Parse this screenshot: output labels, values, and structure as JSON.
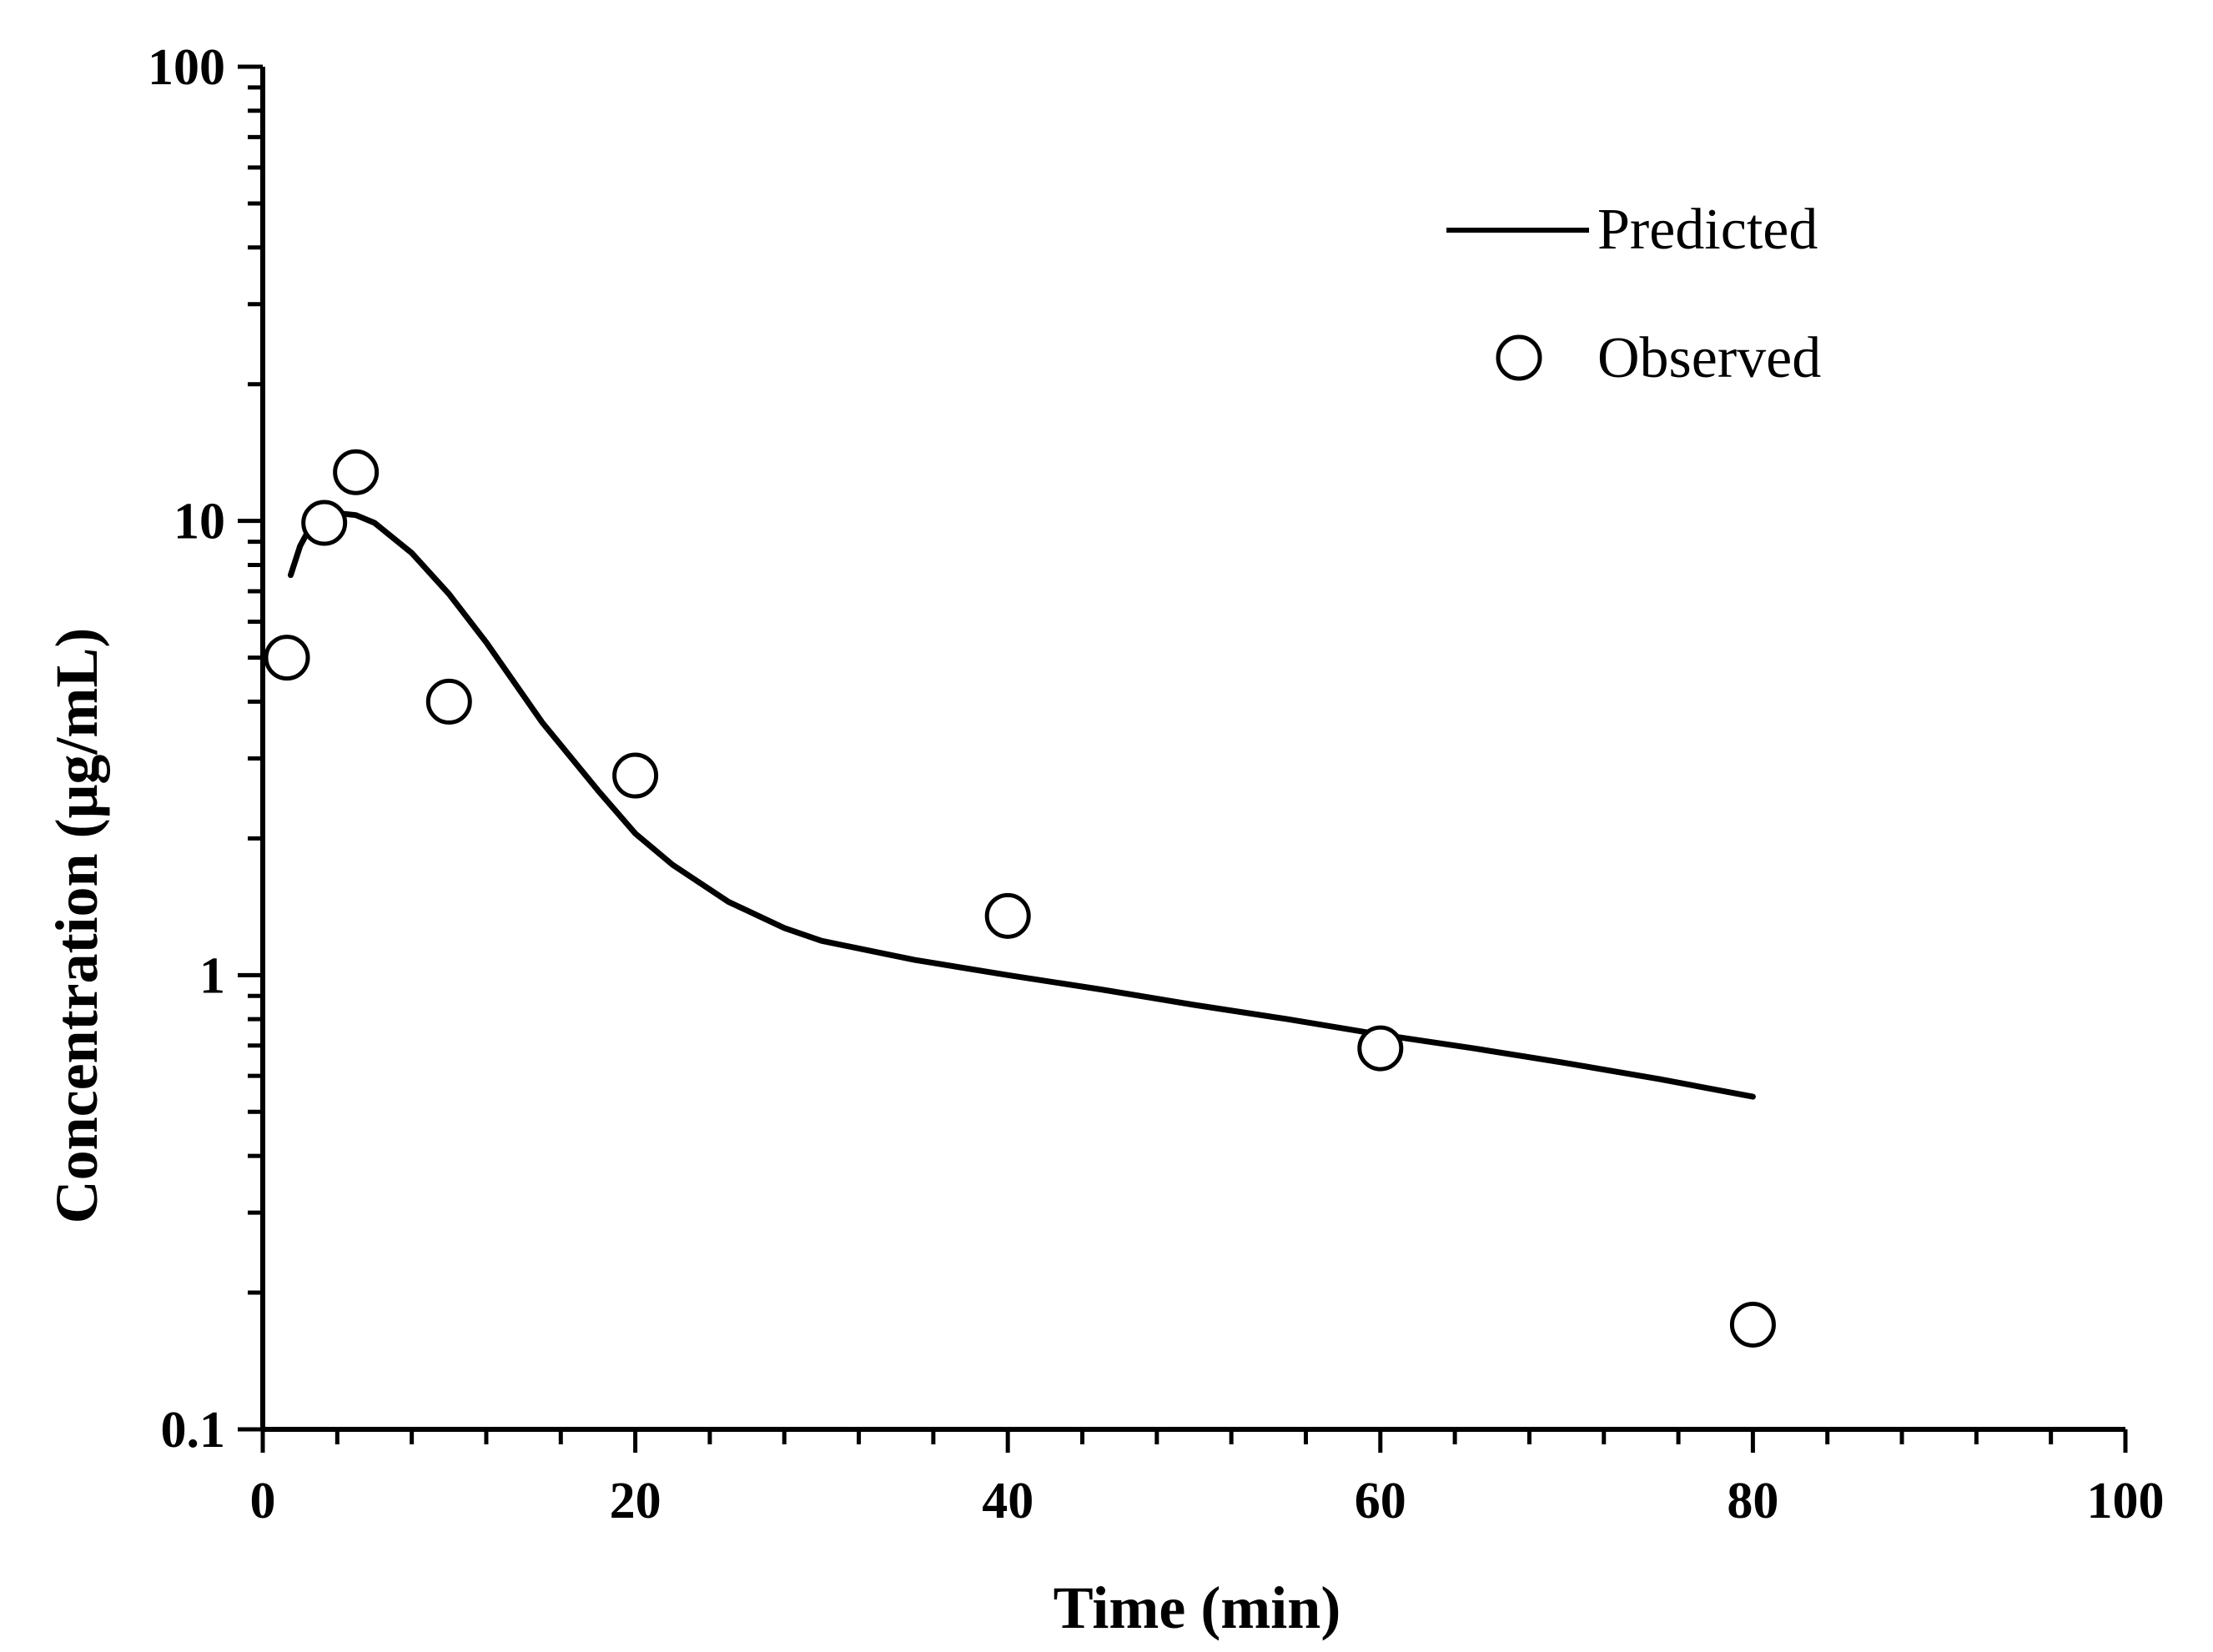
{
  "chart_data": {
    "type": "scatter",
    "title": "",
    "xlabel": "Time (min)",
    "ylabel": "Concentration (μg/mL)",
    "xlim": [
      0,
      100
    ],
    "ylim": [
      0.1,
      100
    ],
    "yscale": "log",
    "grid": false,
    "legend_position": "top-right",
    "x_ticks": [
      0,
      20,
      40,
      60,
      80,
      100
    ],
    "x_tick_labels": [
      "0",
      "20",
      "40",
      "60",
      "80",
      "100"
    ],
    "y_ticks": [
      0.1,
      1,
      10,
      100
    ],
    "y_tick_labels": [
      "0.1",
      "1",
      "10",
      "100"
    ],
    "series": [
      {
        "name": "Predicted",
        "kind": "line",
        "color": "#000000",
        "x": [
          1.5,
          2,
          2.5,
          3,
          4,
          5,
          6,
          8,
          10,
          12,
          15,
          18,
          20,
          22,
          25,
          28,
          30,
          35,
          40,
          45,
          50,
          55,
          60,
          65,
          70,
          75,
          80
        ],
        "y": [
          7.6,
          8.8,
          9.6,
          10.1,
          10.4,
          10.3,
          9.9,
          8.5,
          6.9,
          5.4,
          3.6,
          2.55,
          2.05,
          1.75,
          1.45,
          1.27,
          1.19,
          1.08,
          1.0,
          0.93,
          0.86,
          0.8,
          0.74,
          0.69,
          0.64,
          0.59,
          0.54
        ]
      },
      {
        "name": "Observed",
        "kind": "scatter",
        "marker": "open-circle",
        "color": "#000000",
        "x": [
          1.3,
          3.3,
          5.0,
          10.0,
          20.0,
          40.0,
          60.0,
          80.0
        ],
        "y": [
          5.0,
          9.9,
          12.8,
          4.0,
          2.75,
          1.35,
          0.69,
          0.17
        ]
      }
    ],
    "legend": [
      "Predicted",
      "Observed"
    ]
  }
}
